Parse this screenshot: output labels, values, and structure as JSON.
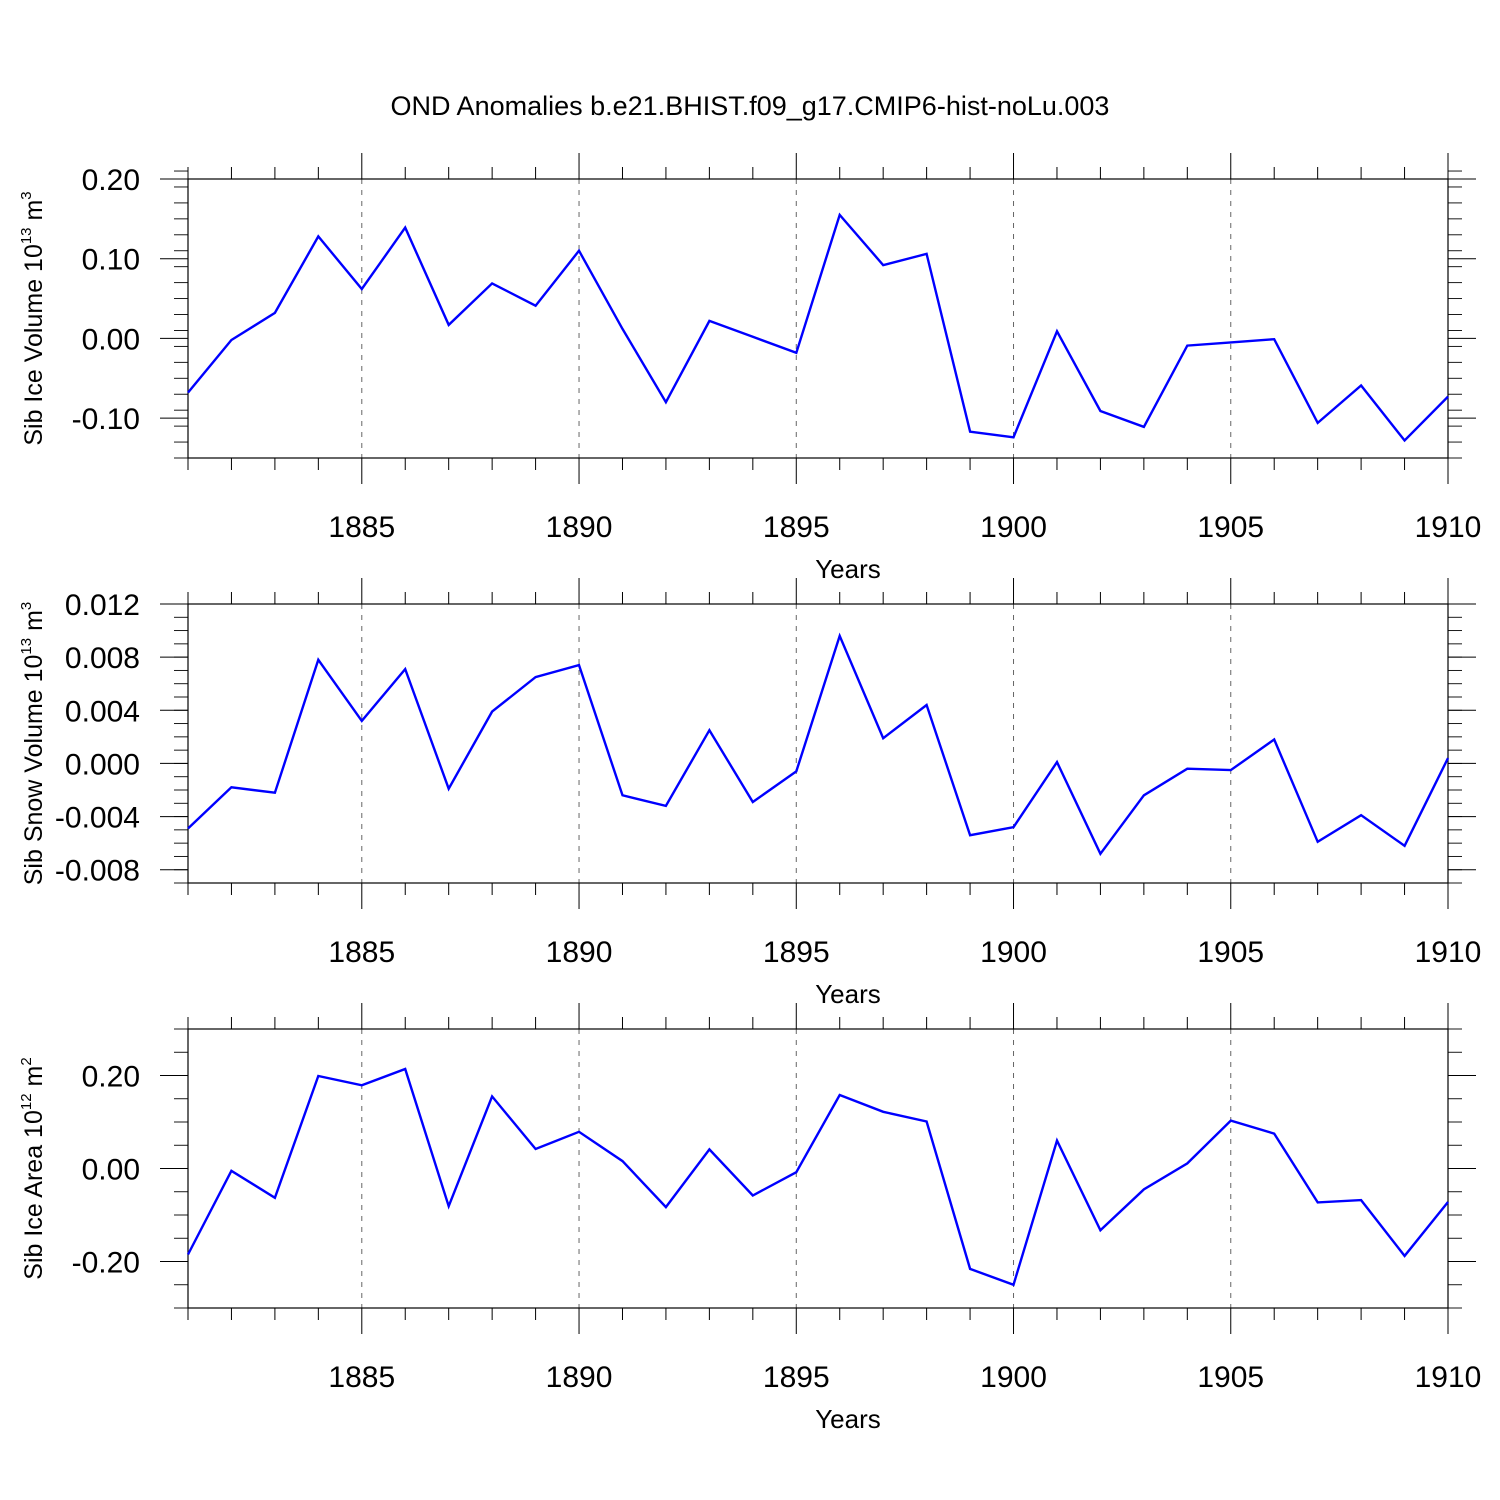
{
  "title": "OND Anomalies b.e21.BHIST.f09_g17.CMIP6-hist-noLu.003",
  "colors": {
    "line": "#0000ff",
    "axis": "#000000",
    "grid": "#666666"
  },
  "chart_data": [
    {
      "type": "line",
      "ylabel": {
        "text": "Sib Ice Volume 10",
        "exp": "13",
        "unit": " m",
        "unit_exp": "3"
      },
      "xlabel": "Years",
      "xlim": [
        1881,
        1910
      ],
      "ylim": [
        -0.15,
        0.2
      ],
      "yticks": [
        -0.1,
        0.0,
        0.1,
        0.2
      ],
      "ytick_labels": [
        "-0.10",
        "0.00",
        "0.10",
        "0.20"
      ],
      "yminor_step": 0.02,
      "xticks": [
        1885,
        1890,
        1895,
        1900,
        1905,
        1910
      ],
      "xtick_labels": [
        "1885",
        "1890",
        "1895",
        "1900",
        "1905",
        "1910"
      ],
      "grid": "vertical dashed at major x ticks",
      "x": [
        1881,
        1882,
        1883,
        1884,
        1885,
        1886,
        1887,
        1888,
        1889,
        1890,
        1891,
        1892,
        1893,
        1894,
        1895,
        1896,
        1897,
        1898,
        1899,
        1900,
        1901,
        1902,
        1903,
        1904,
        1905,
        1906,
        1907,
        1908,
        1909,
        1910
      ],
      "values": [
        -0.068,
        -0.002,
        0.032,
        0.128,
        0.062,
        0.139,
        0.017,
        0.069,
        0.041,
        0.11,
        0.012,
        -0.08,
        0.022,
        0.002,
        -0.018,
        0.155,
        0.092,
        0.106,
        -0.117,
        -0.124,
        0.009,
        -0.091,
        -0.111,
        -0.009,
        -0.005,
        -0.001,
        -0.106,
        -0.059,
        -0.128,
        -0.073
      ]
    },
    {
      "type": "line",
      "ylabel": {
        "text": "Sib Snow Volume 10",
        "exp": "13",
        "unit": " m",
        "unit_exp": "3"
      },
      "xlabel": "Years",
      "xlim": [
        1881,
        1910
      ],
      "ylim": [
        -0.009,
        0.012
      ],
      "yticks": [
        -0.008,
        -0.004,
        0.0,
        0.004,
        0.008,
        0.012
      ],
      "ytick_labels": [
        "-0.008",
        "-0.004",
        "0.000",
        "0.004",
        "0.008",
        "0.012"
      ],
      "yminor_step": 0.001,
      "xticks": [
        1885,
        1890,
        1895,
        1900,
        1905,
        1910
      ],
      "xtick_labels": [
        "1885",
        "1890",
        "1895",
        "1900",
        "1905",
        "1910"
      ],
      "grid": "vertical dashed at major x ticks",
      "x": [
        1881,
        1882,
        1883,
        1884,
        1885,
        1886,
        1887,
        1888,
        1889,
        1890,
        1891,
        1892,
        1893,
        1894,
        1895,
        1896,
        1897,
        1898,
        1899,
        1900,
        1901,
        1902,
        1903,
        1904,
        1905,
        1906,
        1907,
        1908,
        1909,
        1910
      ],
      "values": [
        -0.0049,
        -0.0018,
        -0.0022,
        0.0078,
        0.0032,
        0.0071,
        -0.0019,
        0.0039,
        0.0065,
        0.0074,
        -0.0024,
        -0.0032,
        0.0025,
        -0.0029,
        -0.0006,
        0.0096,
        0.0019,
        0.0044,
        -0.0054,
        -0.0048,
        0.0001,
        -0.0068,
        -0.0024,
        -0.0004,
        -0.0005,
        0.0018,
        -0.0059,
        -0.0039,
        -0.0062,
        0.0004
      ]
    },
    {
      "type": "line",
      "ylabel": {
        "text": "Sib Ice Area 10",
        "exp": "12",
        "unit": " m",
        "unit_exp": "2"
      },
      "xlabel": "Years",
      "xlim": [
        1881,
        1910
      ],
      "ylim": [
        -0.3,
        0.3
      ],
      "yticks": [
        -0.2,
        0.0,
        0.2
      ],
      "ytick_labels": [
        "-0.20",
        "0.00",
        "0.20"
      ],
      "yminor_step": 0.05,
      "xticks": [
        1885,
        1890,
        1895,
        1900,
        1905,
        1910
      ],
      "xtick_labels": [
        "1885",
        "1890",
        "1895",
        "1900",
        "1905",
        "1910"
      ],
      "grid": "vertical dashed at major x ticks",
      "x": [
        1881,
        1882,
        1883,
        1884,
        1885,
        1886,
        1887,
        1888,
        1889,
        1890,
        1891,
        1892,
        1893,
        1894,
        1895,
        1896,
        1897,
        1898,
        1899,
        1900,
        1901,
        1902,
        1903,
        1904,
        1905,
        1906,
        1907,
        1908,
        1909,
        1910
      ],
      "values": [
        -0.185,
        -0.005,
        -0.063,
        0.199,
        0.179,
        0.214,
        -0.081,
        0.155,
        0.042,
        0.079,
        0.016,
        -0.083,
        0.041,
        -0.058,
        -0.008,
        0.158,
        0.122,
        0.101,
        -0.216,
        -0.25,
        0.06,
        -0.133,
        -0.045,
        0.011,
        0.103,
        0.075,
        -0.073,
        -0.068,
        -0.188,
        -0.072
      ]
    }
  ]
}
